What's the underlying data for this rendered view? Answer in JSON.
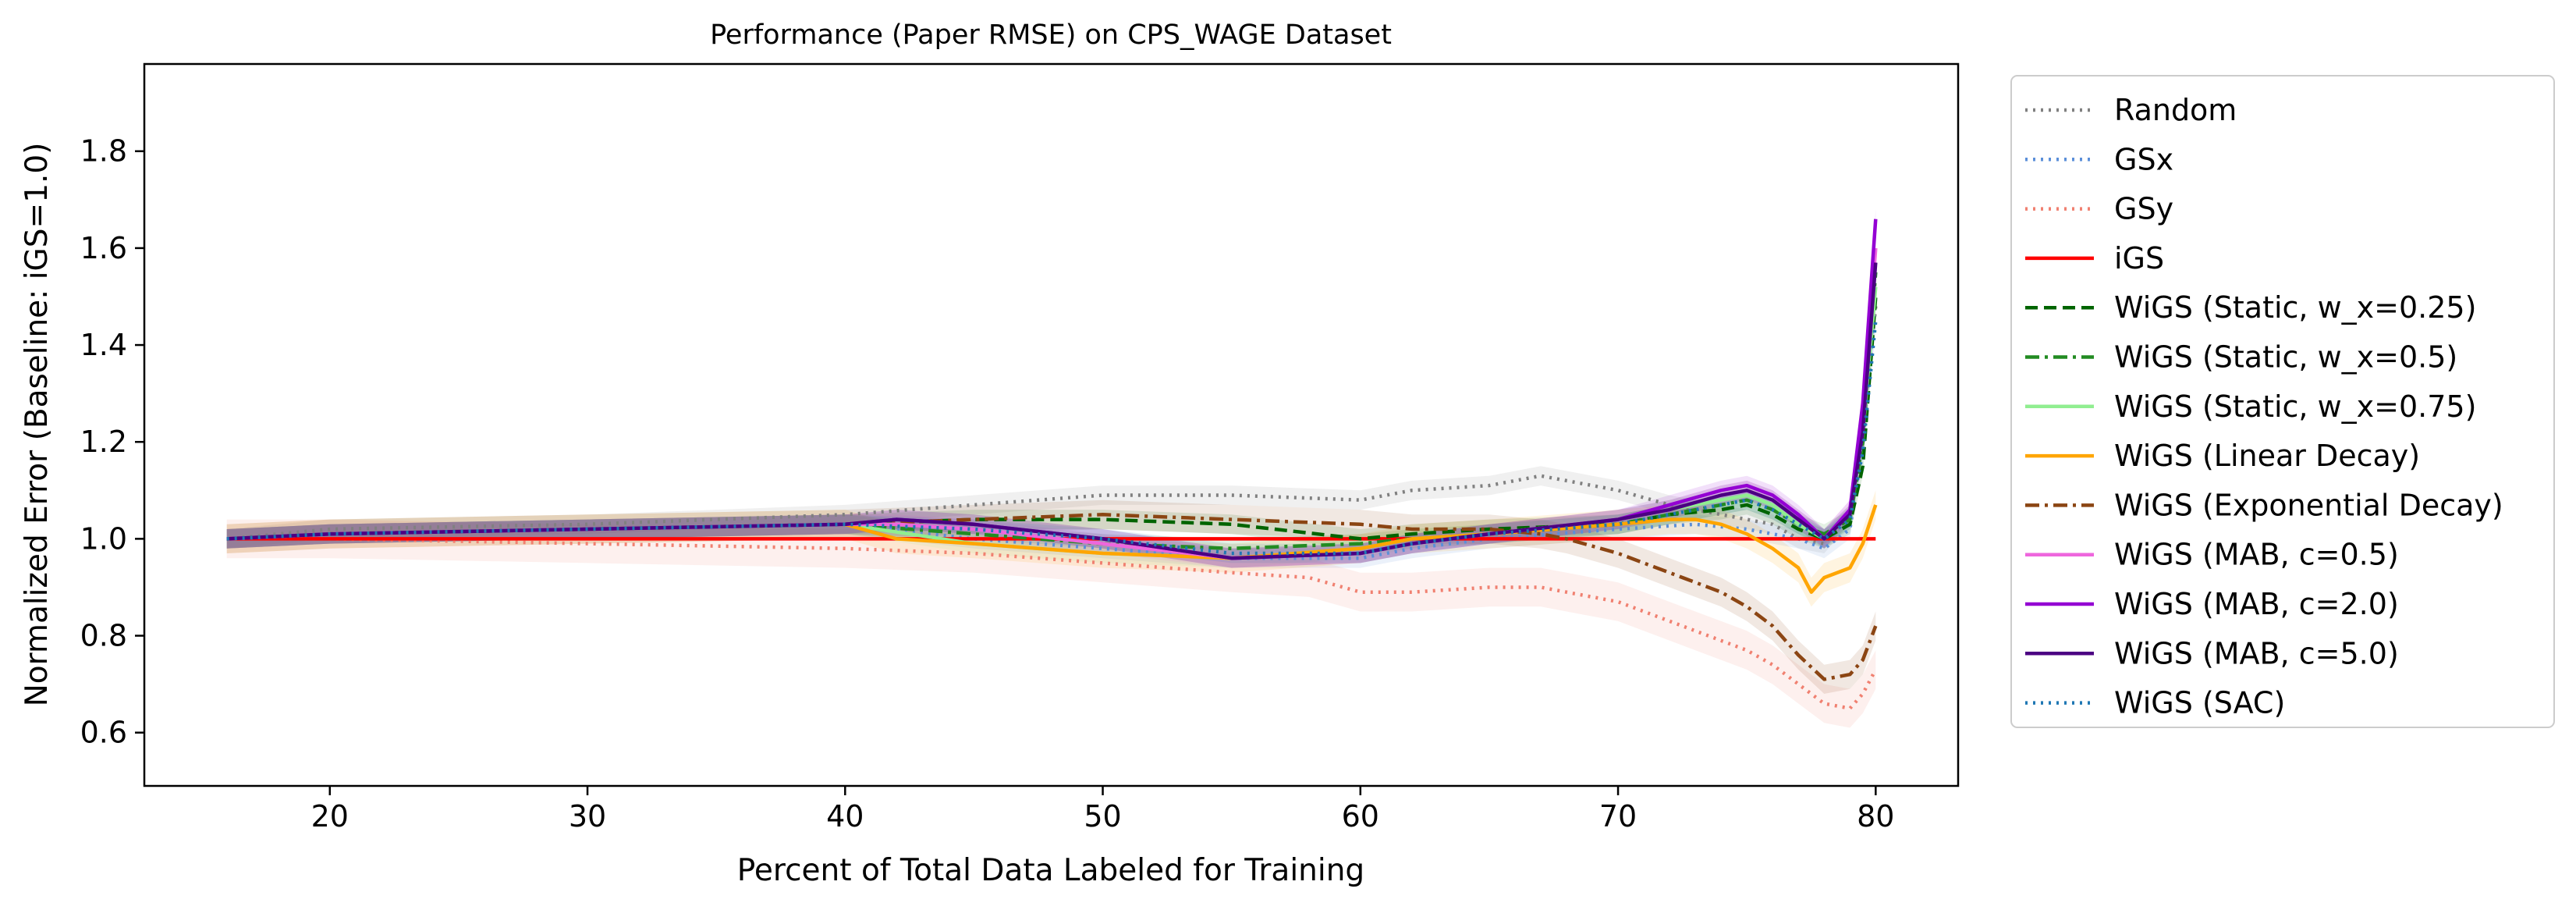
{
  "chart_data": {
    "type": "line",
    "title": "Performance (Paper RMSE) on CPS_WAGE Dataset",
    "xlabel": "Percent of Total Data Labeled for Training",
    "ylabel": "Normalized Error (Baseline: iGS=1.0)",
    "xlim": [
      12.8,
      83.2
    ],
    "ylim": [
      0.49,
      1.98
    ],
    "xticks": [
      20,
      30,
      40,
      50,
      60,
      70,
      80
    ],
    "yticks": [
      0.6,
      0.8,
      1.0,
      1.2,
      1.4,
      1.6,
      1.8
    ],
    "grid": false,
    "legend_position": "outside-right",
    "series": [
      {
        "name": "Random",
        "color": "#808080",
        "dash": "dotted",
        "x": [
          16,
          20,
          30,
          40,
          45,
          50,
          55,
          60,
          62,
          65,
          67,
          70,
          72,
          74,
          76,
          77,
          78,
          79,
          79.5,
          80
        ],
        "y": [
          1.0,
          1.02,
          1.03,
          1.05,
          1.07,
          1.09,
          1.09,
          1.08,
          1.1,
          1.11,
          1.13,
          1.1,
          1.07,
          1.05,
          1.03,
          1.0,
          0.99,
          1.05,
          1.2,
          1.48
        ],
        "band": 0.02
      },
      {
        "name": "GSx",
        "color": "#5b8fd9",
        "dash": "dotted",
        "x": [
          16,
          20,
          30,
          40,
          45,
          50,
          55,
          60,
          62,
          65,
          70,
          73,
          75,
          77,
          78,
          79,
          79.5,
          80
        ],
        "y": [
          1.0,
          1.01,
          1.02,
          1.03,
          1.0,
          0.98,
          0.96,
          0.96,
          0.98,
          1.0,
          1.02,
          1.03,
          1.02,
          1.0,
          0.98,
          1.02,
          1.2,
          1.5
        ],
        "band": 0.02
      },
      {
        "name": "GSy",
        "color": "#f08070",
        "dash": "dotted",
        "x": [
          16,
          20,
          30,
          40,
          45,
          50,
          55,
          58,
          60,
          62,
          65,
          67,
          68,
          70,
          72,
          74,
          75,
          76,
          77,
          78,
          79,
          79.5,
          80
        ],
        "y": [
          1.0,
          1.0,
          0.99,
          0.98,
          0.97,
          0.95,
          0.93,
          0.92,
          0.89,
          0.89,
          0.9,
          0.9,
          0.89,
          0.87,
          0.83,
          0.79,
          0.77,
          0.74,
          0.7,
          0.66,
          0.65,
          0.68,
          0.73
        ],
        "band": 0.04
      },
      {
        "name": "iGS",
        "color": "#ff0000",
        "dash": "solid",
        "x": [
          16,
          80
        ],
        "y": [
          1.0,
          1.0
        ],
        "band": 0
      },
      {
        "name": "WiGS (Static, w_x=0.25)",
        "color": "#006400",
        "dash": "dashed",
        "x": [
          16,
          20,
          30,
          40,
          45,
          50,
          55,
          60,
          62,
          65,
          70,
          72,
          74,
          75,
          76,
          77,
          78,
          79,
          79.5,
          80
        ],
        "y": [
          1.0,
          1.01,
          1.02,
          1.03,
          1.04,
          1.04,
          1.03,
          1.0,
          1.01,
          1.02,
          1.03,
          1.05,
          1.06,
          1.07,
          1.05,
          1.02,
          1.0,
          1.03,
          1.15,
          1.5
        ],
        "band": 0.02
      },
      {
        "name": "WiGS (Static, w_x=0.5)",
        "color": "#228b22",
        "dash": "dashdot",
        "x": [
          16,
          20,
          30,
          40,
          45,
          50,
          55,
          60,
          62,
          65,
          70,
          72,
          74,
          75,
          76,
          77,
          78,
          79,
          79.5,
          80
        ],
        "y": [
          1.0,
          1.01,
          1.02,
          1.03,
          1.01,
          0.99,
          0.98,
          0.99,
          1.0,
          1.01,
          1.03,
          1.05,
          1.07,
          1.08,
          1.06,
          1.03,
          1.01,
          1.04,
          1.2,
          1.55
        ],
        "band": 0.02
      },
      {
        "name": "WiGS (Static, w_x=0.75)",
        "color": "#90ee90",
        "dash": "solid",
        "x": [
          16,
          20,
          30,
          40,
          45,
          50,
          55,
          60,
          62,
          65,
          70,
          72,
          74,
          75,
          76,
          77,
          78,
          79,
          79.5,
          80
        ],
        "y": [
          1.0,
          1.01,
          1.02,
          1.03,
          0.99,
          0.97,
          0.96,
          0.98,
          1.0,
          1.01,
          1.04,
          1.06,
          1.08,
          1.09,
          1.07,
          1.03,
          1.0,
          1.05,
          1.22,
          1.52
        ],
        "band": 0.02
      },
      {
        "name": "WiGS (Linear Decay)",
        "color": "#ffa500",
        "dash": "solid",
        "x": [
          16,
          20,
          30,
          40,
          42,
          45,
          50,
          55,
          60,
          62,
          65,
          70,
          72,
          73,
          74,
          75,
          76,
          77,
          77.5,
          78,
          79,
          79.5,
          80
        ],
        "y": [
          1.0,
          1.01,
          1.02,
          1.03,
          1.0,
          0.99,
          0.97,
          0.96,
          0.98,
          1.0,
          1.01,
          1.03,
          1.04,
          1.04,
          1.03,
          1.01,
          0.98,
          0.94,
          0.89,
          0.92,
          0.94,
          0.99,
          1.07
        ],
        "band": 0.03
      },
      {
        "name": "WiGS (Exponential Decay)",
        "color": "#8b4513",
        "dash": "dashdot",
        "x": [
          16,
          20,
          30,
          40,
          45,
          50,
          55,
          60,
          62,
          65,
          67,
          68,
          70,
          72,
          74,
          75,
          76,
          77,
          78,
          79,
          79.5,
          80
        ],
        "y": [
          1.0,
          1.01,
          1.02,
          1.03,
          1.04,
          1.05,
          1.04,
          1.03,
          1.02,
          1.02,
          1.01,
          1.0,
          0.97,
          0.93,
          0.89,
          0.86,
          0.82,
          0.76,
          0.71,
          0.72,
          0.75,
          0.82
        ],
        "band": 0.03
      },
      {
        "name": "WiGS (MAB, c=0.5)",
        "color": "#ee66dd",
        "dash": "solid",
        "x": [
          16,
          20,
          30,
          40,
          42,
          45,
          50,
          55,
          60,
          62,
          65,
          70,
          72,
          74,
          75,
          76,
          77,
          78,
          79,
          79.5,
          80
        ],
        "y": [
          1.0,
          1.01,
          1.02,
          1.03,
          1.03,
          1.02,
          0.99,
          0.96,
          0.97,
          0.99,
          1.01,
          1.04,
          1.06,
          1.09,
          1.1,
          1.08,
          1.04,
          1.0,
          1.06,
          1.25,
          1.6
        ],
        "band": 0.02
      },
      {
        "name": "WiGS (MAB, c=2.0)",
        "color": "#9400d3",
        "dash": "solid",
        "x": [
          16,
          20,
          30,
          40,
          42,
          45,
          50,
          55,
          60,
          62,
          65,
          70,
          72,
          74,
          75,
          76,
          77,
          78,
          79,
          79.5,
          80
        ],
        "y": [
          1.0,
          1.01,
          1.02,
          1.03,
          1.04,
          1.03,
          1.0,
          0.96,
          0.97,
          0.99,
          1.01,
          1.04,
          1.07,
          1.1,
          1.11,
          1.09,
          1.05,
          1.0,
          1.06,
          1.28,
          1.66
        ],
        "band": 0.02
      },
      {
        "name": "WiGS (MAB, c=5.0)",
        "color": "#4b0082",
        "dash": "solid",
        "x": [
          16,
          20,
          30,
          40,
          42,
          45,
          50,
          55,
          60,
          62,
          65,
          70,
          72,
          74,
          75,
          76,
          77,
          78,
          79,
          79.5,
          80
        ],
        "y": [
          1.0,
          1.01,
          1.02,
          1.03,
          1.04,
          1.03,
          1.0,
          0.96,
          0.97,
          0.99,
          1.01,
          1.04,
          1.06,
          1.09,
          1.1,
          1.08,
          1.04,
          1.0,
          1.05,
          1.22,
          1.57
        ],
        "band": 0.02
      },
      {
        "name": "WiGS (SAC)",
        "color": "#1f77b4",
        "dash": "dotted",
        "x": [
          16,
          20,
          30,
          40,
          45,
          50,
          55,
          60,
          62,
          65,
          70,
          72,
          74,
          75,
          76,
          77,
          78,
          79,
          79.5,
          80
        ],
        "y": [
          1.0,
          1.01,
          1.02,
          1.03,
          1.02,
          1.0,
          0.97,
          0.97,
          0.99,
          1.01,
          1.03,
          1.05,
          1.07,
          1.08,
          1.06,
          1.03,
          1.0,
          1.04,
          1.18,
          1.45
        ],
        "band": 0.02
      }
    ]
  }
}
